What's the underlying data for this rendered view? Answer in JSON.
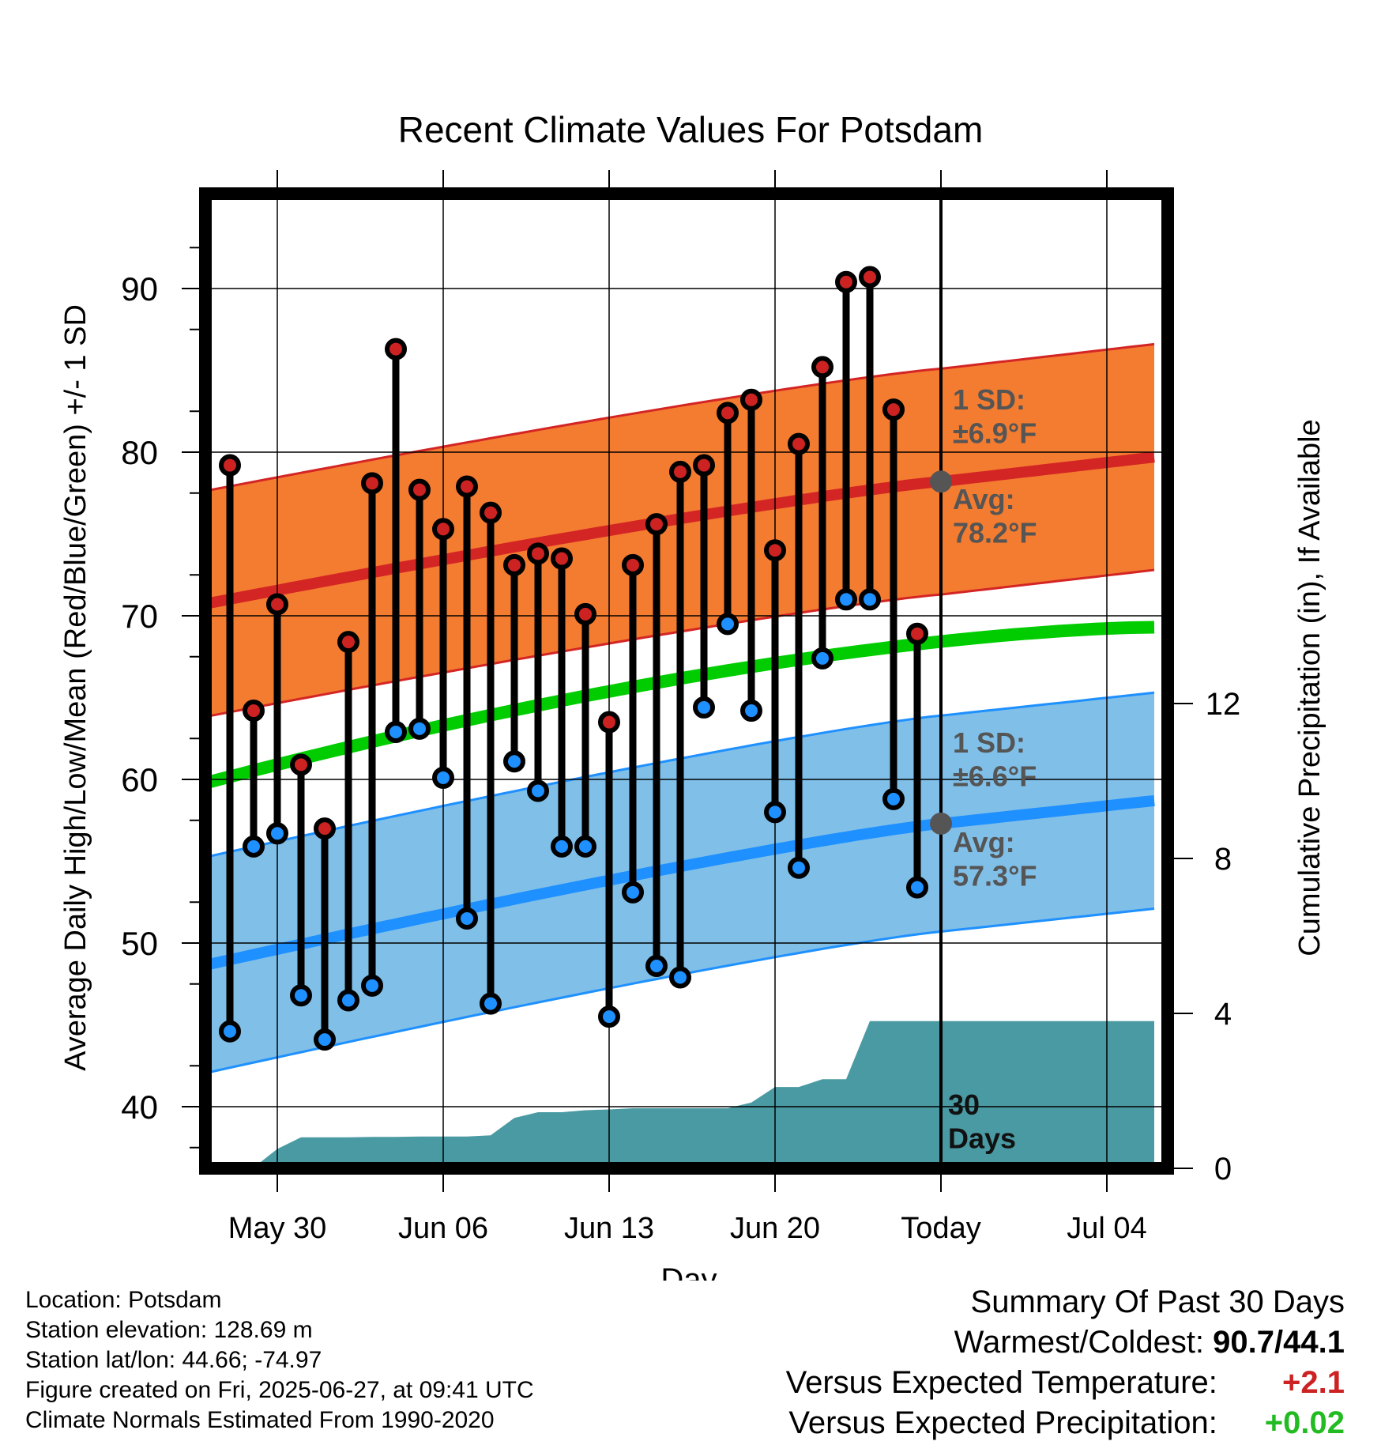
{
  "chart_data": {
    "type": "line",
    "title": "Recent Climate Values For Potsdam",
    "xlabel": "Day",
    "ylabel": "Average Daily High/Low/Mean (Red/Blue/Green) +/- 1 SD",
    "y2label": "Cumulative Precipitation (in), If Available",
    "x_tick_labels": [
      {
        "day": 6,
        "label": "May 30"
      },
      {
        "day": 13,
        "label": "Jun 06"
      },
      {
        "day": 20,
        "label": "Jun 13"
      },
      {
        "day": 27,
        "label": "Jun 20"
      },
      {
        "day": 34,
        "label": "Today"
      },
      {
        "day": 41,
        "label": "Jul 04"
      }
    ],
    "x_range_days": [
      2.5,
      43
    ],
    "ylim": [
      36.5,
      96
    ],
    "y_ticks": [
      40,
      50,
      60,
      70,
      80,
      90
    ],
    "y2lim": [
      0,
      29.4
    ],
    "y2_ticks": [
      0,
      4,
      8,
      12
    ],
    "today_day": 34,
    "highs": [
      79.2,
      64.2,
      70.7,
      60.9,
      57.0,
      68.4,
      78.1,
      86.3,
      77.7,
      75.3,
      77.9,
      76.3,
      73.1,
      73.8,
      73.5,
      70.1,
      63.5,
      73.1,
      75.6,
      78.8,
      79.2,
      82.4,
      83.2,
      74.0,
      80.5,
      85.2,
      90.4,
      90.7,
      82.6,
      68.9
    ],
    "lows": [
      44.6,
      55.9,
      56.7,
      46.8,
      44.1,
      46.5,
      47.4,
      62.9,
      63.1,
      60.1,
      51.5,
      46.3,
      61.1,
      59.3,
      55.9,
      55.9,
      45.5,
      53.1,
      48.6,
      47.9,
      64.4,
      69.5,
      64.2,
      58.0,
      54.6,
      67.4,
      71.0,
      71.0,
      58.8,
      53.4
    ],
    "normal_high_avg": {
      "start": 70.6,
      "today": 78.2,
      "end": 79.7
    },
    "normal_high_sd": 6.9,
    "normal_low_avg": {
      "start": 48.5,
      "today": 57.3,
      "end": 58.7
    },
    "normal_low_sd": 6.6,
    "normal_mean": {
      "start": 59.6,
      "end": 69.3
    },
    "precip_cumulative": [
      0,
      0.01,
      0.02,
      0.5,
      0.8,
      0.8,
      0.8,
      0.81,
      0.81,
      0.82,
      0.82,
      0.82,
      0.85,
      1.3,
      1.45,
      1.45,
      1.5,
      1.52,
      1.55,
      1.55,
      1.55,
      1.55,
      1.55,
      1.7,
      2.1,
      2.1,
      2.3,
      2.3,
      3.8,
      3.8,
      3.8
    ],
    "annotations": {
      "high_sd_label": "1 SD:\n±6.9°F",
      "high_avg_label": "Avg:\n78.2°F",
      "low_sd_label": "1 SD:\n±6.6°F",
      "low_avg_label": "Avg:\n57.3°F",
      "days_label": "30\nDays"
    },
    "colors": {
      "high_band": "#f47c30",
      "high_line": "#d42525",
      "low_band": "#80bfe8",
      "low_line": "#1e90ff",
      "mean_line": "#00cc00",
      "precip": "#4a9aa3",
      "high_marker": "#cc2222",
      "low_marker": "#1e90ff",
      "annotation_text": "#555555"
    },
    "grid": true
  },
  "footer": {
    "location": "Location: Potsdam",
    "elevation": "Station elevation: 128.69 m",
    "latlon": "Station lat/lon: 44.66; -74.97",
    "created": "Figure created on Fri, 2025-06-27, at 09:41 UTC",
    "normals": "Climate Normals Estimated From 1990-2020"
  },
  "summary": {
    "title": "Summary Of Past 30 Days",
    "warm_cold_label": "Warmest/Coldest:",
    "warm_cold_value": "90.7/44.1",
    "temp_label": "Versus Expected Temperature:",
    "temp_value": "+2.1",
    "temp_color": "#cc2222",
    "precip_label": "Versus Expected Precipitation:",
    "precip_value": "+0.02",
    "precip_color": "#22bb22"
  }
}
